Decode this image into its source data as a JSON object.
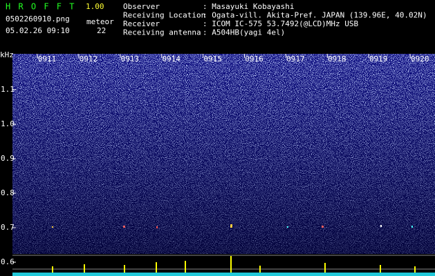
{
  "header": {
    "title": "H R O F F T",
    "version": "1.00",
    "file": "0502260910.png",
    "datetime": "05.02.26 09:10",
    "meteor_label": "meteor",
    "meteor_count": "22",
    "fields": [
      {
        "label": "Observer",
        "value": ": Masayuki Kobayashi"
      },
      {
        "label": "Receiving Location",
        "value": ": Ogata-vill. Akita-Pref. JAPAN (139.96E, 40.02N)"
      },
      {
        "label": "Receiver",
        "value": ": ICOM IC-575 53.7492(@LCD)MHz USB"
      },
      {
        "label": "Receiving antenna",
        "value": ": A504HB(yagi 4el)"
      }
    ]
  },
  "chart_data": {
    "type": "spectrogram",
    "y_label": "kHz",
    "categories": [
      "0911",
      "0912",
      "0913",
      "0914",
      "0915",
      "0916",
      "0917",
      "0918",
      "0919",
      "0920"
    ],
    "ylim": [
      0.56,
      1.2
    ],
    "yticks": [
      0.6,
      0.7,
      0.8,
      0.9,
      {
        "value": 1,
        "label": "1.0"
      },
      1.1
    ]
  }
}
